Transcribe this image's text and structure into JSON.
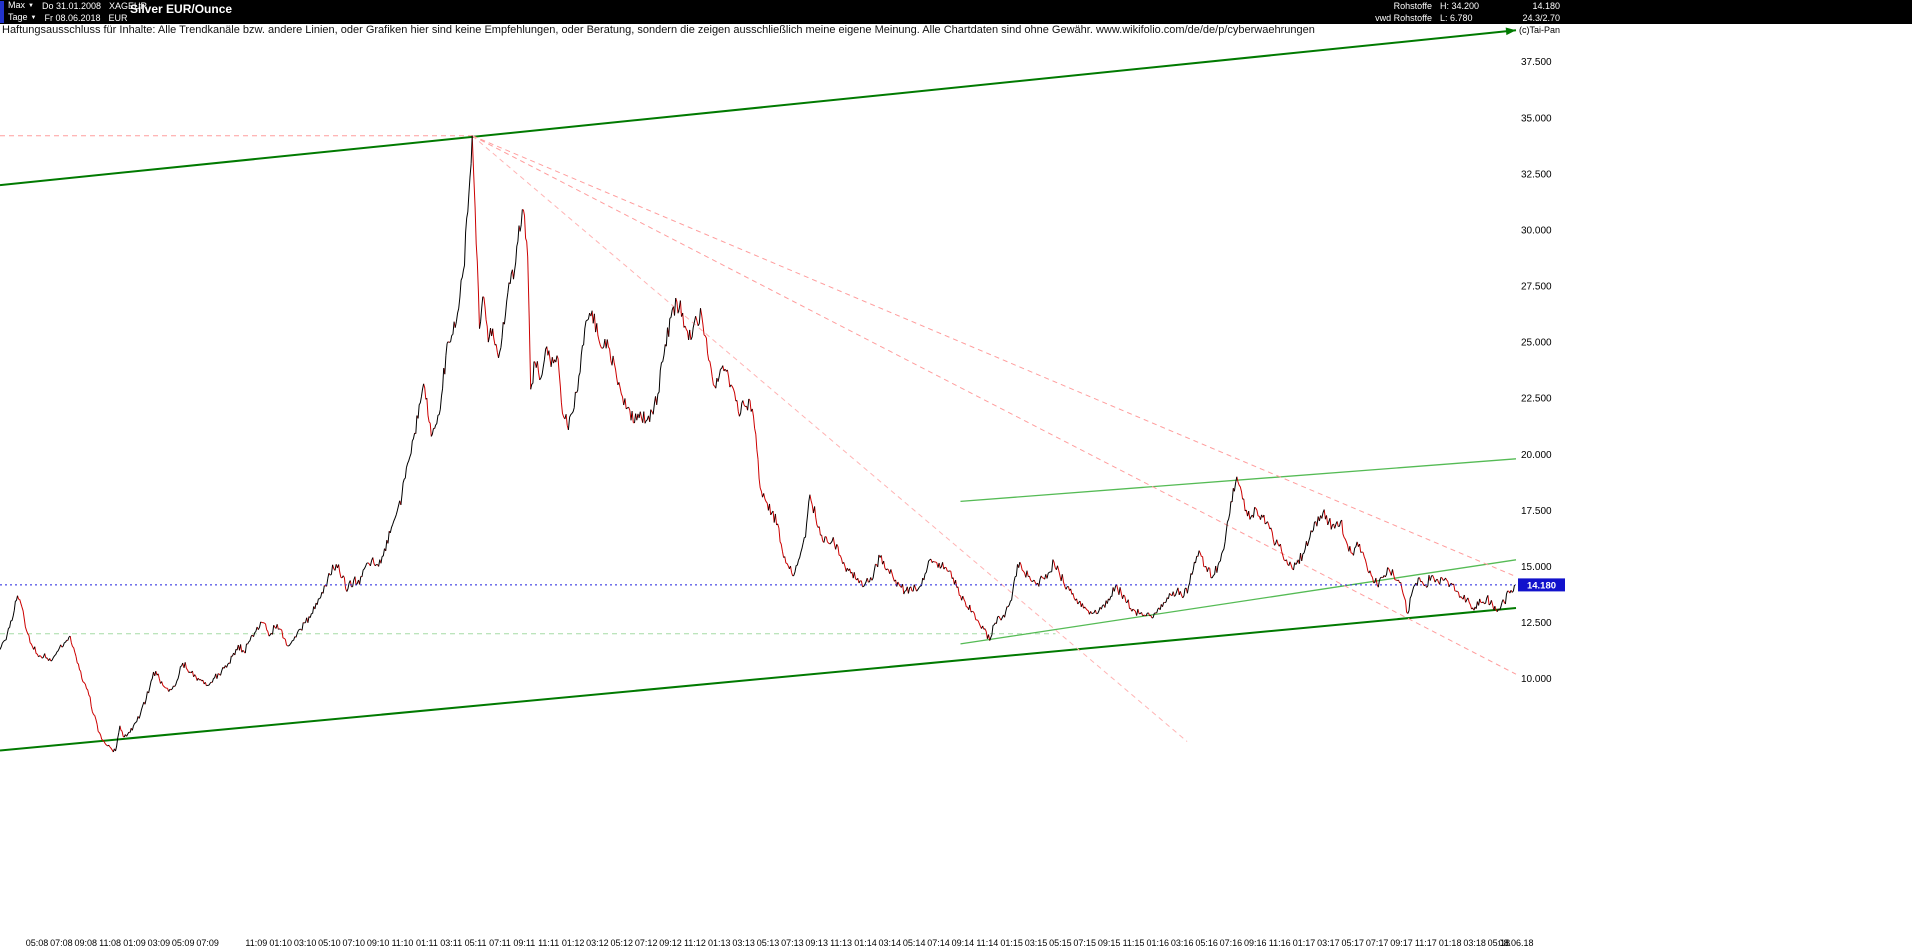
{
  "icons": {
    "dropdown": "▼"
  },
  "topbar": {
    "range_label": "Max",
    "interval_label": "Tage",
    "start_date": "Do 31.01.2008",
    "end_date": "Fr 08.06.2018",
    "symbol": "XAGEUR",
    "currency": "EUR",
    "title": "Silver EUR/Ounce",
    "stats": {
      "category": "Rohstoffe",
      "source": "vwd Rohstoffe",
      "high": "H: 34.200",
      "low": "L: 6.780",
      "last": "14.180",
      "change": "24.3/2.70",
      "copyright": "(c)Tai-Pan"
    }
  },
  "disclaimer": "Haftungsausschluss für Inhalte: Alle Trendkanäle bzw. andere Linien, oder Grafiken hier sind keine Empfehlungen, oder Beratung, sondern die zeigen ausschließlich meine eigene Meinung. Alle Chartdaten sind ohne Gewähr.  www.wikifolio.com/de/de/p/cyberwaehrungen",
  "chart_data": {
    "type": "line",
    "title": "Silver EUR/Ounce",
    "instrument": "XAGEUR",
    "currency": "EUR",
    "period": "Tage",
    "x_range_years": [
      2008.08,
      2018.45
    ],
    "high": 34.2,
    "low": 6.78,
    "current_price": 14.18,
    "current_price_label": "14.180",
    "end_label": "08.06.18",
    "y_axis": {
      "labels": [
        "37.500",
        "35.000",
        "32.500",
        "30.000",
        "27.500",
        "25.000",
        "22.500",
        "20.000",
        "17.500",
        "15.000",
        "12.500",
        "10.000"
      ],
      "values": [
        37.5,
        35,
        32.5,
        30,
        27.5,
        25,
        22.5,
        20,
        17.5,
        15,
        12.5,
        10
      ],
      "top_price": 38.6,
      "bottom_price": -1.2
    },
    "x_labels": [
      "05:08",
      "07:08",
      "09:08",
      "11:08",
      "01:09",
      "03:09",
      "05:09",
      "07:09",
      "11:09",
      "01:10",
      "03:10",
      "05:10",
      "07:10",
      "09:10",
      "11:10",
      "01:11",
      "03:11",
      "05:11",
      "07:11",
      "09:11",
      "11:11",
      "01:12",
      "03:12",
      "05:12",
      "07:12",
      "09:12",
      "11:12",
      "01:13",
      "03:13",
      "05:13",
      "07:13",
      "09:13",
      "11:13",
      "01:14",
      "03:14",
      "05:14",
      "07:14",
      "09:14",
      "11:14",
      "01:15",
      "03:15",
      "05:15",
      "07:15",
      "09:15",
      "11:15",
      "01:16",
      "03:16",
      "05:16",
      "07:16",
      "09:16",
      "11:16",
      "01:17",
      "03:17",
      "05:17",
      "07:17",
      "09:17",
      "11:17",
      "01:18",
      "03:18",
      "05:18"
    ],
    "colors": {
      "price_up": "#000000",
      "price_down": "#cc0000",
      "current_line": "#2020dd",
      "current_tag": "#1212cc",
      "channel": "#007a00",
      "support_light": "#55bb55",
      "fan": "#ff9d9d",
      "support_dashed": "#a5dca5"
    },
    "trend_lines": [
      {
        "name": "upper-channel-line",
        "x1": 2008.08,
        "p1": 32.0,
        "x2": 2018.45,
        "p2": 38.9,
        "color": "#007a00",
        "width": 2,
        "arrow": true
      },
      {
        "name": "lower-channel-line",
        "x1": 2008.08,
        "p1": 6.8,
        "x2": 2018.45,
        "p2": 13.15,
        "color": "#007a00",
        "width": 2
      },
      {
        "name": "recent-support-line",
        "x1": 2014.65,
        "p1": 11.55,
        "x2": 2018.45,
        "p2": 15.3,
        "color": "#55bb55",
        "width": 1.3
      },
      {
        "name": "recent-resistance-line",
        "x1": 2014.65,
        "p1": 17.9,
        "x2": 2018.45,
        "p2": 19.8,
        "color": "#55bb55",
        "width": 1.3
      },
      {
        "name": "fan-line-1",
        "x1": 2011.31,
        "p1": 34.2,
        "x2": 2018.45,
        "p2": 14.55,
        "color": "#ff9d9d",
        "width": 1,
        "dash": "5,4"
      },
      {
        "name": "fan-line-2",
        "x1": 2011.31,
        "p1": 34.2,
        "x2": 2018.45,
        "p2": 10.2,
        "color": "#ff9d9d",
        "width": 1,
        "dash": "5,4"
      },
      {
        "name": "fan-line-3",
        "x1": 2011.31,
        "p1": 34.2,
        "x2": 2016.2,
        "p2": 7.2,
        "color": "#ffb3b3",
        "width": 1,
        "dash": "5,4"
      }
    ],
    "h_lines": [
      {
        "name": "high-level-line",
        "p": 34.2,
        "x1": 2008.08,
        "x2": 2011.31,
        "color": "#ff9d9d",
        "dash": "5,4"
      },
      {
        "name": "support-level-line",
        "p": 12.0,
        "x1": 2008.08,
        "x2": 2015.3,
        "color": "#a5dca5",
        "dash": "5,4"
      }
    ],
    "series": [
      [
        2008.08,
        11.3
      ],
      [
        2008.13,
        12.0
      ],
      [
        2008.17,
        12.8
      ],
      [
        2008.2,
        13.7
      ],
      [
        2008.23,
        13.2
      ],
      [
        2008.27,
        12.0
      ],
      [
        2008.31,
        11.3
      ],
      [
        2008.36,
        11.0
      ],
      [
        2008.42,
        10.9
      ],
      [
        2008.47,
        11.2
      ],
      [
        2008.52,
        11.6
      ],
      [
        2008.56,
        11.9
      ],
      [
        2008.6,
        11.0
      ],
      [
        2008.64,
        10.0
      ],
      [
        2008.68,
        9.5
      ],
      [
        2008.72,
        8.4
      ],
      [
        2008.76,
        7.6
      ],
      [
        2008.8,
        7.1
      ],
      [
        2008.84,
        6.9
      ],
      [
        2008.87,
        6.78
      ],
      [
        2008.9,
        7.9
      ],
      [
        2008.93,
        7.4
      ],
      [
        2008.97,
        7.6
      ],
      [
        2009.0,
        8.0
      ],
      [
        2009.04,
        8.4
      ],
      [
        2009.08,
        9.1
      ],
      [
        2009.13,
        10.3
      ],
      [
        2009.17,
        10.0
      ],
      [
        2009.21,
        9.6
      ],
      [
        2009.25,
        9.5
      ],
      [
        2009.29,
        9.9
      ],
      [
        2009.33,
        10.7
      ],
      [
        2009.38,
        10.3
      ],
      [
        2009.42,
        10.1
      ],
      [
        2009.46,
        9.9
      ],
      [
        2009.5,
        9.7
      ],
      [
        2009.54,
        10.0
      ],
      [
        2009.58,
        10.2
      ],
      [
        2009.63,
        10.5
      ],
      [
        2009.67,
        11.0
      ],
      [
        2009.71,
        11.5
      ],
      [
        2009.75,
        11.2
      ],
      [
        2009.79,
        11.7
      ],
      [
        2009.83,
        12.1
      ],
      [
        2009.88,
        12.5
      ],
      [
        2009.92,
        11.9
      ],
      [
        2009.96,
        12.3
      ],
      [
        2010.0,
        12.2
      ],
      [
        2010.04,
        11.5
      ],
      [
        2010.08,
        11.7
      ],
      [
        2010.13,
        12.2
      ],
      [
        2010.17,
        12.5
      ],
      [
        2010.21,
        12.9
      ],
      [
        2010.25,
        13.3
      ],
      [
        2010.29,
        13.8
      ],
      [
        2010.33,
        14.7
      ],
      [
        2010.38,
        15.1
      ],
      [
        2010.42,
        14.5
      ],
      [
        2010.46,
        14.0
      ],
      [
        2010.5,
        14.4
      ],
      [
        2010.54,
        14.2
      ],
      [
        2010.58,
        15.0
      ],
      [
        2010.63,
        15.4
      ],
      [
        2010.67,
        15.0
      ],
      [
        2010.71,
        15.8
      ],
      [
        2010.75,
        16.5
      ],
      [
        2010.79,
        17.3
      ],
      [
        2010.83,
        18.2
      ],
      [
        2010.86,
        19.4
      ],
      [
        2010.9,
        20.6
      ],
      [
        2010.94,
        21.6
      ],
      [
        2010.97,
        22.9
      ],
      [
        2011.0,
        22.5
      ],
      [
        2011.03,
        20.8
      ],
      [
        2011.06,
        21.3
      ],
      [
        2011.1,
        22.6
      ],
      [
        2011.13,
        24.4
      ],
      [
        2011.17,
        25.3
      ],
      [
        2011.21,
        26.3
      ],
      [
        2011.25,
        28.2
      ],
      [
        2011.28,
        30.8
      ],
      [
        2011.31,
        34.2
      ],
      [
        2011.33,
        31.0
      ],
      [
        2011.36,
        25.6
      ],
      [
        2011.39,
        27.0
      ],
      [
        2011.42,
        25.0
      ],
      [
        2011.45,
        25.6
      ],
      [
        2011.49,
        24.3
      ],
      [
        2011.53,
        25.8
      ],
      [
        2011.57,
        27.6
      ],
      [
        2011.6,
        28.2
      ],
      [
        2011.63,
        30.2
      ],
      [
        2011.66,
        30.9
      ],
      [
        2011.69,
        28.8
      ],
      [
        2011.71,
        22.9
      ],
      [
        2011.74,
        24.1
      ],
      [
        2011.78,
        23.4
      ],
      [
        2011.82,
        24.8
      ],
      [
        2011.85,
        23.9
      ],
      [
        2011.89,
        24.4
      ],
      [
        2011.92,
        22.3
      ],
      [
        2011.96,
        21.3
      ],
      [
        2012.0,
        21.9
      ],
      [
        2012.04,
        23.5
      ],
      [
        2012.08,
        25.6
      ],
      [
        2012.13,
        26.4
      ],
      [
        2012.17,
        25.3
      ],
      [
        2012.21,
        24.8
      ],
      [
        2012.25,
        24.7
      ],
      [
        2012.29,
        23.8
      ],
      [
        2012.33,
        22.7
      ],
      [
        2012.38,
        22.1
      ],
      [
        2012.42,
        21.4
      ],
      [
        2012.46,
        21.9
      ],
      [
        2012.5,
        21.5
      ],
      [
        2012.54,
        21.9
      ],
      [
        2012.58,
        22.7
      ],
      [
        2012.63,
        24.9
      ],
      [
        2012.67,
        26.1
      ],
      [
        2012.71,
        26.8
      ],
      [
        2012.75,
        26.3
      ],
      [
        2012.79,
        25.1
      ],
      [
        2012.83,
        25.9
      ],
      [
        2012.88,
        26.2
      ],
      [
        2012.92,
        24.5
      ],
      [
        2012.96,
        23.1
      ],
      [
        2013.0,
        23.5
      ],
      [
        2013.04,
        23.8
      ],
      [
        2013.08,
        23.1
      ],
      [
        2013.13,
        21.9
      ],
      [
        2013.17,
        22.2
      ],
      [
        2013.21,
        22.4
      ],
      [
        2013.25,
        20.9
      ],
      [
        2013.28,
        18.5
      ],
      [
        2013.32,
        17.9
      ],
      [
        2013.36,
        17.4
      ],
      [
        2013.4,
        16.9
      ],
      [
        2013.44,
        15.4
      ],
      [
        2013.48,
        14.9
      ],
      [
        2013.51,
        14.6
      ],
      [
        2013.55,
        15.4
      ],
      [
        2013.59,
        16.3
      ],
      [
        2013.62,
        18.2
      ],
      [
        2013.66,
        17.2
      ],
      [
        2013.7,
        16.4
      ],
      [
        2013.74,
        16.1
      ],
      [
        2013.78,
        16.3
      ],
      [
        2013.82,
        15.5
      ],
      [
        2013.86,
        15.0
      ],
      [
        2013.9,
        14.7
      ],
      [
        2013.94,
        14.4
      ],
      [
        2013.98,
        14.1
      ],
      [
        2014.02,
        14.3
      ],
      [
        2014.06,
        14.8
      ],
      [
        2014.1,
        15.4
      ],
      [
        2014.15,
        14.9
      ],
      [
        2014.19,
        14.5
      ],
      [
        2014.23,
        14.2
      ],
      [
        2014.27,
        13.9
      ],
      [
        2014.31,
        14.1
      ],
      [
        2014.35,
        13.9
      ],
      [
        2014.4,
        14.4
      ],
      [
        2014.44,
        15.3
      ],
      [
        2014.48,
        15.2
      ],
      [
        2014.52,
        15.0
      ],
      [
        2014.56,
        14.8
      ],
      [
        2014.6,
        14.5
      ],
      [
        2014.65,
        13.7
      ],
      [
        2014.69,
        13.2
      ],
      [
        2014.73,
        13.0
      ],
      [
        2014.77,
        12.6
      ],
      [
        2014.81,
        12.2
      ],
      [
        2014.85,
        11.7
      ],
      [
        2014.88,
        12.4
      ],
      [
        2014.92,
        12.7
      ],
      [
        2014.96,
        13.0
      ],
      [
        2015.0,
        13.5
      ],
      [
        2015.04,
        15.1
      ],
      [
        2015.08,
        14.8
      ],
      [
        2015.13,
        14.4
      ],
      [
        2015.17,
        14.2
      ],
      [
        2015.21,
        14.5
      ],
      [
        2015.25,
        14.7
      ],
      [
        2015.29,
        15.2
      ],
      [
        2015.33,
        14.6
      ],
      [
        2015.38,
        14.1
      ],
      [
        2015.42,
        13.8
      ],
      [
        2015.46,
        13.4
      ],
      [
        2015.5,
        13.2
      ],
      [
        2015.54,
        13.0
      ],
      [
        2015.58,
        12.9
      ],
      [
        2015.63,
        13.3
      ],
      [
        2015.67,
        13.5
      ],
      [
        2015.71,
        14.1
      ],
      [
        2015.75,
        13.8
      ],
      [
        2015.79,
        13.4
      ],
      [
        2015.83,
        13.1
      ],
      [
        2015.88,
        12.9
      ],
      [
        2015.92,
        12.8
      ],
      [
        2015.96,
        12.7
      ],
      [
        2016.0,
        13.1
      ],
      [
        2016.04,
        13.4
      ],
      [
        2016.08,
        13.8
      ],
      [
        2016.13,
        13.9
      ],
      [
        2016.17,
        13.6
      ],
      [
        2016.21,
        14.1
      ],
      [
        2016.25,
        15.2
      ],
      [
        2016.29,
        15.6
      ],
      [
        2016.33,
        15.0
      ],
      [
        2016.38,
        14.6
      ],
      [
        2016.42,
        15.2
      ],
      [
        2016.46,
        16.1
      ],
      [
        2016.5,
        17.9
      ],
      [
        2016.54,
        19.0
      ],
      [
        2016.58,
        18.0
      ],
      [
        2016.63,
        17.1
      ],
      [
        2016.67,
        17.6
      ],
      [
        2016.71,
        17.3
      ],
      [
        2016.75,
        17.0
      ],
      [
        2016.79,
        16.2
      ],
      [
        2016.83,
        15.9
      ],
      [
        2016.88,
        15.3
      ],
      [
        2016.92,
        14.9
      ],
      [
        2016.96,
        15.3
      ],
      [
        2017.0,
        15.6
      ],
      [
        2017.04,
        16.3
      ],
      [
        2017.08,
        17.0
      ],
      [
        2017.13,
        17.4
      ],
      [
        2017.17,
        17.0
      ],
      [
        2017.21,
        16.7
      ],
      [
        2017.25,
        17.0
      ],
      [
        2017.29,
        16.1
      ],
      [
        2017.33,
        15.6
      ],
      [
        2017.38,
        16.0
      ],
      [
        2017.42,
        15.3
      ],
      [
        2017.46,
        14.6
      ],
      [
        2017.5,
        14.2
      ],
      [
        2017.54,
        14.5
      ],
      [
        2017.58,
        14.9
      ],
      [
        2017.63,
        14.4
      ],
      [
        2017.67,
        14.0
      ],
      [
        2017.71,
        12.9
      ],
      [
        2017.75,
        14.1
      ],
      [
        2017.79,
        14.5
      ],
      [
        2017.83,
        14.2
      ],
      [
        2017.88,
        14.6
      ],
      [
        2017.92,
        14.3
      ],
      [
        2017.96,
        14.4
      ],
      [
        2018.0,
        14.2
      ],
      [
        2018.04,
        13.9
      ],
      [
        2018.08,
        13.6
      ],
      [
        2018.13,
        13.4
      ],
      [
        2018.17,
        13.2
      ],
      [
        2018.21,
        13.4
      ],
      [
        2018.25,
        13.6
      ],
      [
        2018.29,
        13.3
      ],
      [
        2018.33,
        13.1
      ],
      [
        2018.37,
        13.4
      ],
      [
        2018.4,
        13.9
      ],
      [
        2018.44,
        14.18
      ]
    ]
  }
}
